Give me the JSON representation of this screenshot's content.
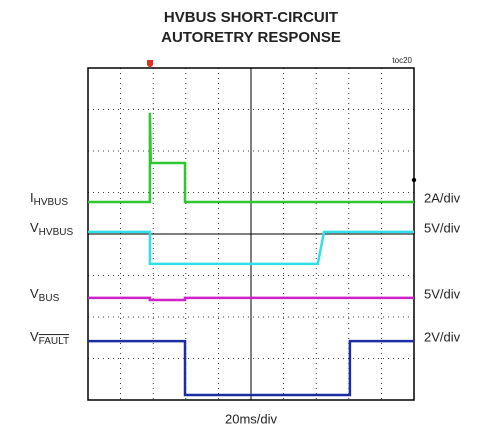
{
  "chart_data": {
    "type": "scope",
    "title": [
      "HVBUS SHORT-CIRCUIT",
      "AUTORETRY RESPONSE"
    ],
    "figure_id": "toc20",
    "x_label": "20ms/div",
    "xlim": [
      0,
      200
    ],
    "ylim": [
      0,
      8
    ],
    "xticks": [
      0,
      20,
      40,
      60,
      80,
      100,
      120,
      140,
      160,
      180,
      200
    ],
    "yticks": [
      0,
      1,
      2,
      3,
      4,
      5,
      6,
      7,
      8
    ],
    "grid": true,
    "series": [
      {
        "name": {
          "symbol": "I",
          "subscript": "HVBUS"
        },
        "scale": "2A/div",
        "color": "#2ec82e",
        "x": [
          0,
          38,
          38,
          38.5,
          59.5,
          59.5,
          200
        ],
        "values": [
          4.77,
          4.77,
          6.92,
          5.71,
          5.71,
          4.77,
          4.77
        ]
      },
      {
        "name": {
          "symbol": "V",
          "subscript": "HVBUS"
        },
        "scale": "5V/div",
        "color": "#30e0e8",
        "x": [
          0,
          38,
          38,
          141,
          144.8,
          200
        ],
        "values": [
          4.05,
          4.05,
          3.28,
          3.28,
          4.05,
          4.05
        ]
      },
      {
        "name": {
          "symbol": "V",
          "subscript": "BUS"
        },
        "scale": "5V/div",
        "color": "#d020c8",
        "x": [
          0,
          38,
          38,
          59.5,
          59.5,
          200
        ],
        "values": [
          2.46,
          2.46,
          2.41,
          2.41,
          2.46,
          2.46
        ]
      },
      {
        "name": {
          "symbol": "V",
          "subscript": "FAULT",
          "overline": true
        },
        "scale": "2V/div",
        "color": "#1a2ea0",
        "x": [
          0,
          59.5,
          59.5,
          160.7,
          160.7,
          200
        ],
        "values": [
          1.42,
          1.42,
          0.12,
          0.12,
          1.42,
          1.42
        ]
      }
    ]
  }
}
